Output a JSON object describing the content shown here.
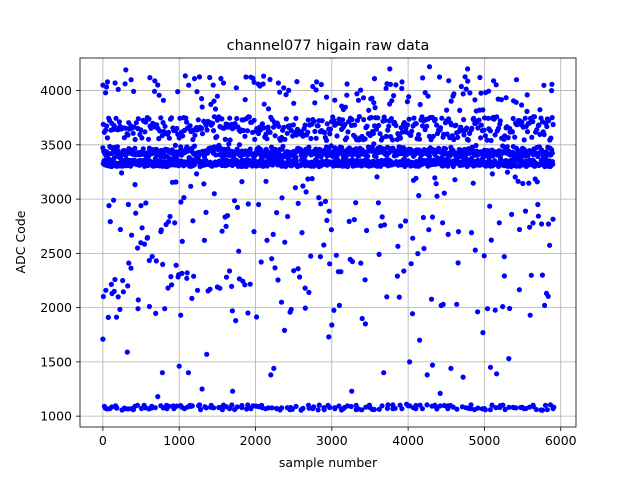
{
  "chart_data": {
    "type": "scatter",
    "title": "channel077 higain raw data",
    "xlabel": "sample number",
    "ylabel": "ADC Code",
    "xlim": [
      -300,
      6200
    ],
    "ylim": [
      900,
      4300
    ],
    "xticks": [
      0,
      1000,
      2000,
      3000,
      4000,
      5000,
      6000
    ],
    "yticks": [
      1000,
      1500,
      2000,
      2500,
      3000,
      3500,
      4000
    ],
    "grid": true,
    "series": [
      {
        "color": "#0000ff",
        "marker": "circle",
        "n_points": 5900,
        "band_center": 3430,
        "band_low": 3300,
        "band_high": 3760,
        "points": [
          [
            0,
            4050
          ],
          [
            0,
            1710
          ],
          [
            20,
            1090
          ],
          [
            40,
            2160
          ],
          [
            60,
            4080
          ],
          [
            80,
            2940
          ],
          [
            90,
            1070
          ],
          [
            120,
            2130
          ],
          [
            140,
            2990
          ],
          [
            160,
            4070
          ],
          [
            180,
            1080
          ],
          [
            200,
            2100
          ],
          [
            230,
            2720
          ],
          [
            260,
            2250
          ],
          [
            290,
            1070
          ],
          [
            300,
            4190
          ],
          [
            320,
            1590
          ],
          [
            340,
            2410
          ],
          [
            370,
            4100
          ],
          [
            400,
            1060
          ],
          [
            430,
            2870
          ],
          [
            460,
            1990
          ],
          [
            500,
            2940
          ],
          [
            540,
            1100
          ],
          [
            580,
            2640
          ],
          [
            610,
            2010
          ],
          [
            640,
            1090
          ],
          [
            680,
            4090
          ],
          [
            700,
            2430
          ],
          [
            720,
            1180
          ],
          [
            760,
            2700
          ],
          [
            780,
            1400
          ],
          [
            810,
            1990
          ],
          [
            840,
            1070
          ],
          [
            880,
            2840
          ],
          [
            900,
            2210
          ],
          [
            930,
            1070
          ],
          [
            960,
            2390
          ],
          [
            980,
            3990
          ],
          [
            1000,
            1460
          ],
          [
            1020,
            1930
          ],
          [
            1040,
            2610
          ],
          [
            1070,
            1070
          ],
          [
            1100,
            2270
          ],
          [
            1120,
            1400
          ],
          [
            1150,
            1090
          ],
          [
            1180,
            2800
          ],
          [
            1200,
            4110
          ],
          [
            1240,
            2160
          ],
          [
            1280,
            1060
          ],
          [
            1300,
            1250
          ],
          [
            1330,
            2620
          ],
          [
            1360,
            1570
          ],
          [
            1400,
            4120
          ],
          [
            1420,
            1100
          ],
          [
            1460,
            3050
          ],
          [
            1500,
            2190
          ],
          [
            1540,
            1080
          ],
          [
            1580,
            4070
          ],
          [
            1620,
            2280
          ],
          [
            1660,
            1070
          ],
          [
            1700,
            1230
          ],
          [
            1740,
            1880
          ],
          [
            1780,
            2520
          ],
          [
            1820,
            1080
          ],
          [
            1860,
            2210
          ],
          [
            1900,
            1950
          ],
          [
            1940,
            1070
          ],
          [
            1980,
            2700
          ],
          [
            2040,
            2950
          ],
          [
            2080,
            1100
          ],
          [
            2100,
            4060
          ],
          [
            2150,
            2620
          ],
          [
            2200,
            1380
          ],
          [
            2240,
            1440
          ],
          [
            2280,
            1070
          ],
          [
            2300,
            4070
          ],
          [
            2340,
            2050
          ],
          [
            2380,
            1790
          ],
          [
            2420,
            2840
          ],
          [
            2460,
            1080
          ],
          [
            2500,
            2340
          ],
          [
            2560,
            2960
          ],
          [
            2600,
            1060
          ],
          [
            2650,
            2180
          ],
          [
            2700,
            2140
          ],
          [
            2750,
            1070
          ],
          [
            2800,
            4080
          ],
          [
            2850,
            2470
          ],
          [
            2900,
            1060
          ],
          [
            2930,
            3940
          ],
          [
            2960,
            1730
          ],
          [
            3000,
            1840
          ],
          [
            3040,
            1070
          ],
          [
            3100,
            2020
          ],
          [
            3150,
            1070
          ],
          [
            3200,
            4060
          ],
          [
            3260,
            1230
          ],
          [
            3320,
            1060
          ],
          [
            3380,
            2410
          ],
          [
            3440,
            1850
          ],
          [
            3500,
            1080
          ],
          [
            3560,
            4110
          ],
          [
            3620,
            2490
          ],
          [
            3680,
            1400
          ],
          [
            3720,
            2100
          ],
          [
            3760,
            4200
          ],
          [
            3800,
            1070
          ],
          [
            3860,
            2290
          ],
          [
            3920,
            4080
          ],
          [
            3980,
            1110
          ],
          [
            4020,
            1500
          ],
          [
            4060,
            2640
          ],
          [
            4100,
            1070
          ],
          [
            4150,
            1700
          ],
          [
            4200,
            2830
          ],
          [
            4250,
            1380
          ],
          [
            4280,
            4220
          ],
          [
            4320,
            1470
          ],
          [
            4360,
            1090
          ],
          [
            4420,
            1210
          ],
          [
            4460,
            2030
          ],
          [
            4520,
            1070
          ],
          [
            4560,
            1440
          ],
          [
            4600,
            3970
          ],
          [
            4660,
            2700
          ],
          [
            4720,
            1360
          ],
          [
            4780,
            4200
          ],
          [
            4820,
            1070
          ],
          [
            4880,
            2530
          ],
          [
            4940,
            4120
          ],
          [
            4980,
            1770
          ],
          [
            5000,
            1070
          ],
          [
            5040,
            1990
          ],
          [
            5080,
            1450
          ],
          [
            5120,
            4090
          ],
          [
            5160,
            1390
          ],
          [
            5200,
            1080
          ],
          [
            5260,
            2470
          ],
          [
            5320,
            1530
          ],
          [
            5380,
            1080
          ],
          [
            5420,
            4100
          ],
          [
            5460,
            2720
          ],
          [
            5520,
            1070
          ],
          [
            5560,
            3960
          ],
          [
            5600,
            1930
          ],
          [
            5640,
            1090
          ],
          [
            5700,
            2950
          ],
          [
            5760,
            2300
          ],
          [
            5800,
            1100
          ],
          [
            5840,
            2770
          ],
          [
            5880,
            4000
          ],
          [
            5900,
            1070
          ]
        ]
      }
    ]
  }
}
